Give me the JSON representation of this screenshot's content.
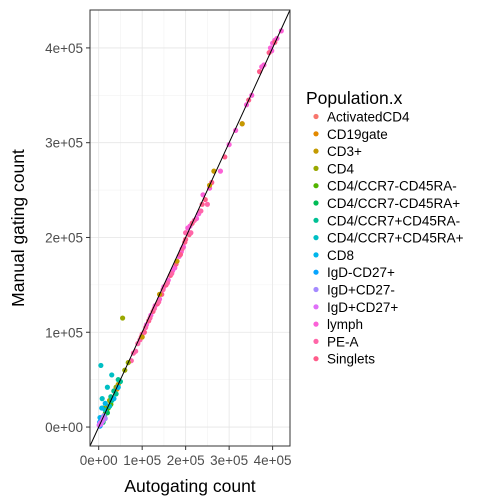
{
  "chart_data": {
    "type": "scatter",
    "xlabel": "Autogating count",
    "ylabel": "Manual gating count",
    "xlim": [
      -20000,
      440000
    ],
    "ylim": [
      -20000,
      440000
    ],
    "x_ticks": [
      0,
      100000,
      200000,
      300000,
      400000
    ],
    "x_tick_labels": [
      "0e+00",
      "1e+05",
      "2e+05",
      "3e+05",
      "4e+05"
    ],
    "y_ticks": [
      0,
      100000,
      200000,
      300000,
      400000
    ],
    "y_tick_labels": [
      "0e+00",
      "1e+05",
      "2e+05",
      "3e+05",
      "4e+05"
    ],
    "grid": true,
    "reference_line": {
      "slope": 1,
      "intercept": 0,
      "color": "#000000"
    },
    "legend": {
      "title": "Population.x",
      "placement": "right",
      "entries": [
        {
          "name": "ActivatedCD4",
          "color": "#F8766D"
        },
        {
          "name": "CD19gate",
          "color": "#E38900"
        },
        {
          "name": "CD3+",
          "color": "#C49A00"
        },
        {
          "name": "CD4",
          "color": "#99A800"
        },
        {
          "name": "CD4/CCR7-CD45RA-",
          "color": "#53B400"
        },
        {
          "name": "CD4/CCR7-CD45RA+",
          "color": "#00BC56"
        },
        {
          "name": "CD4/CCR7+CD45RA-",
          "color": "#00C094"
        },
        {
          "name": "CD4/CCR7+CD45RA+",
          "color": "#00BFC4"
        },
        {
          "name": "CD8",
          "color": "#00B6EB"
        },
        {
          "name": "IgD-CD27+",
          "color": "#06A4FF"
        },
        {
          "name": "IgD+CD27-",
          "color": "#A58AFF"
        },
        {
          "name": "IgD+CD27+",
          "color": "#DF70F8"
        },
        {
          "name": "lymph",
          "color": "#FB61D7"
        },
        {
          "name": "PE-A",
          "color": "#FF66A8"
        },
        {
          "name": "Singlets",
          "color": "#FF5C8A"
        }
      ]
    },
    "series": [
      {
        "name": "lymph",
        "color": "#FB61D7",
        "points": [
          [
            395000,
            400000
          ],
          [
            400000,
            405000
          ],
          [
            405000,
            408000
          ],
          [
            398000,
            397000
          ],
          [
            410000,
            410000
          ],
          [
            420000,
            418000
          ],
          [
            375000,
            380000
          ],
          [
            380000,
            382000
          ],
          [
            352000,
            350000
          ],
          [
            340000,
            340000
          ],
          [
            315000,
            313000
          ],
          [
            300000,
            298000
          ],
          [
            280000,
            270000
          ],
          [
            255000,
            252000
          ],
          [
            240000,
            245000
          ],
          [
            230000,
            225000
          ],
          [
            225000,
            220000
          ],
          [
            210000,
            212000
          ],
          [
            205000,
            210000
          ],
          [
            195000,
            190000
          ],
          [
            190000,
            185000
          ],
          [
            185000,
            180000
          ],
          [
            175000,
            168000
          ],
          [
            170000,
            165000
          ],
          [
            160000,
            155000
          ],
          [
            150000,
            148000
          ],
          [
            140000,
            135000
          ],
          [
            130000,
            128000
          ],
          [
            120000,
            118000
          ],
          [
            110000,
            108000
          ]
        ]
      },
      {
        "name": "Singlets",
        "color": "#FF5C8A",
        "points": [
          [
            405000,
            406000
          ],
          [
            392000,
            395000
          ],
          [
            370000,
            375000
          ],
          [
            345000,
            345000
          ],
          [
            330000,
            320000
          ],
          [
            290000,
            285000
          ],
          [
            260000,
            258000
          ],
          [
            245000,
            240000
          ],
          [
            238000,
            235000
          ],
          [
            215000,
            215000
          ],
          [
            208000,
            203000
          ],
          [
            200000,
            198000
          ],
          [
            198000,
            195000
          ],
          [
            188000,
            182000
          ],
          [
            178000,
            172000
          ],
          [
            165000,
            160000
          ],
          [
            155000,
            150000
          ],
          [
            145000,
            140000
          ],
          [
            135000,
            130000
          ],
          [
            125000,
            122000
          ],
          [
            115000,
            112000
          ],
          [
            105000,
            100000
          ],
          [
            98000,
            95000
          ]
        ]
      },
      {
        "name": "PE-A",
        "color": "#FF66A8",
        "points": [
          [
            250000,
            235000
          ],
          [
            235000,
            228000
          ],
          [
            220000,
            218000
          ],
          [
            212000,
            205000
          ],
          [
            200000,
            205000
          ],
          [
            192000,
            188000
          ],
          [
            180000,
            175000
          ],
          [
            168000,
            162000
          ],
          [
            158000,
            152000
          ],
          [
            148000,
            145000
          ],
          [
            138000,
            132000
          ],
          [
            128000,
            125000
          ],
          [
            118000,
            115000
          ],
          [
            108000,
            105000
          ],
          [
            100000,
            98000
          ],
          [
            95000,
            92000
          ],
          [
            90000,
            88000
          ],
          [
            85000,
            80000
          ],
          [
            80000,
            78000
          ],
          [
            75000,
            70000
          ]
        ]
      },
      {
        "name": "CD3+",
        "color": "#C49A00",
        "points": [
          [
            265000,
            270000
          ],
          [
            330000,
            320000
          ],
          [
            255000,
            255000
          ],
          [
            180000,
            175000
          ],
          [
            140000,
            140000
          ],
          [
            100000,
            95000
          ],
          [
            45000,
            45000
          ]
        ]
      },
      {
        "name": "CD4",
        "color": "#99A800",
        "points": [
          [
            55000,
            115000
          ],
          [
            35000,
            38000
          ],
          [
            30000,
            30000
          ],
          [
            25000,
            28000
          ],
          [
            60000,
            60000
          ],
          [
            68000,
            68000
          ],
          [
            40000,
            42000
          ]
        ]
      },
      {
        "name": "CD19gate",
        "color": "#E38900",
        "points": [
          [
            20000,
            22000
          ],
          [
            12000,
            11000
          ],
          [
            42000,
            40000
          ]
        ]
      },
      {
        "name": "ActivatedCD4",
        "color": "#F8766D",
        "points": [
          [
            3000,
            3000
          ],
          [
            5000,
            4000
          ],
          [
            2000,
            1500
          ]
        ]
      },
      {
        "name": "CD4/CCR7-CD45RA-",
        "color": "#53B400",
        "points": [
          [
            10000,
            20000
          ],
          [
            15000,
            14000
          ],
          [
            18000,
            18000
          ],
          [
            22000,
            20000
          ],
          [
            12000,
            8000
          ],
          [
            8000,
            10000
          ],
          [
            28000,
            24000
          ]
        ]
      },
      {
        "name": "CD4/CCR7-CD45RA+",
        "color": "#00BC56",
        "points": [
          [
            5000,
            8000
          ],
          [
            10000,
            5000
          ],
          [
            20000,
            15000
          ],
          [
            14000,
            10000
          ],
          [
            25000,
            22000
          ]
        ]
      },
      {
        "name": "CD4/CCR7+CD45RA-",
        "color": "#00C094",
        "points": [
          [
            35000,
            38000
          ],
          [
            40000,
            35000
          ],
          [
            30000,
            28000
          ],
          [
            45000,
            50000
          ],
          [
            50000,
            48000
          ],
          [
            28000,
            32000
          ]
        ]
      },
      {
        "name": "CD4/CCR7+CD45RA+",
        "color": "#00BFC4",
        "points": [
          [
            5000,
            65000
          ],
          [
            20000,
            42000
          ],
          [
            8000,
            30000
          ],
          [
            30000,
            55000
          ],
          [
            15000,
            18000
          ],
          [
            25000,
            22000
          ]
        ]
      },
      {
        "name": "CD8",
        "color": "#00B6EB",
        "points": [
          [
            3000,
            10000
          ],
          [
            7000,
            20000
          ],
          [
            15000,
            25000
          ],
          [
            45000,
            42000
          ],
          [
            35000,
            30000
          ]
        ]
      },
      {
        "name": "IgD-CD27+",
        "color": "#06A4FF",
        "points": [
          [
            2000,
            5000
          ],
          [
            4000,
            2000
          ],
          [
            6000,
            8000
          ],
          [
            3000,
            1000
          ]
        ]
      },
      {
        "name": "IgD+CD27-",
        "color": "#A58AFF",
        "points": [
          [
            9000,
            6000
          ],
          [
            12000,
            12000
          ],
          [
            6000,
            4000
          ],
          [
            15000,
            9000
          ]
        ]
      },
      {
        "name": "IgD+CD27+",
        "color": "#DF70F8",
        "points": [
          [
            1000,
            2000
          ],
          [
            3000,
            4000
          ],
          [
            5000,
            3000
          ],
          [
            7000,
            6000
          ],
          [
            10000,
            9000
          ]
        ]
      }
    ]
  }
}
